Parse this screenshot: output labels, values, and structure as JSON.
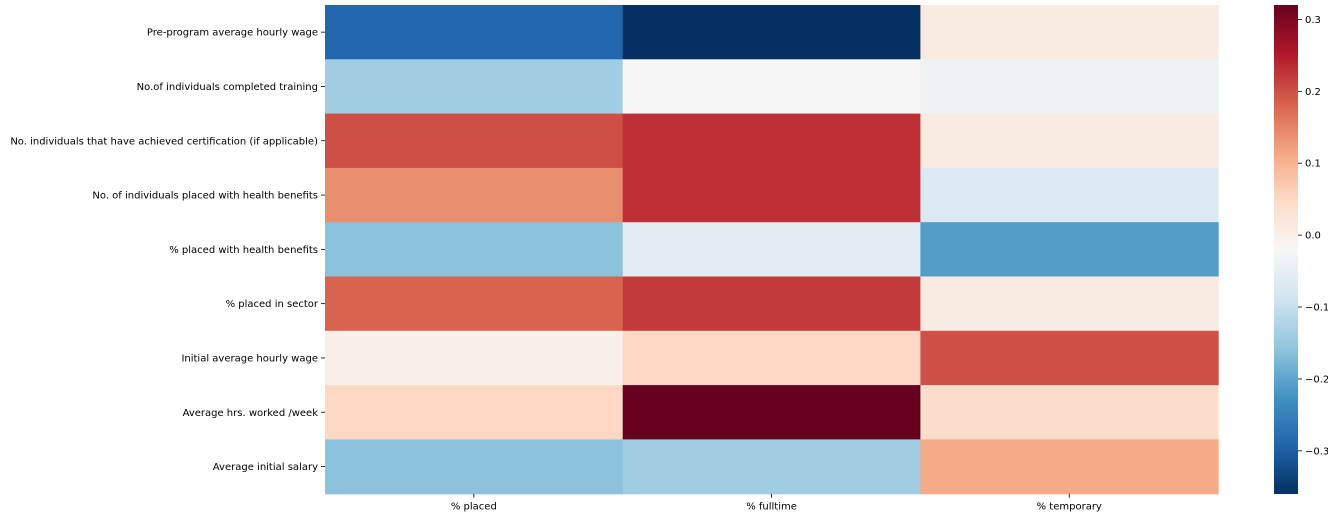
{
  "chart_data": {
    "type": "heatmap",
    "rows": [
      "Pre-program average hourly wage",
      "No.of individuals completed training",
      "No. individuals that have achieved certification (if applicable)",
      "No. of individuals placed with health benefits",
      "% placed with health benefits",
      "% placed in sector",
      "Initial average hourly wage",
      "Average hrs. worked /week",
      "Average initial salary"
    ],
    "columns": [
      "% placed",
      "% fulltime",
      "% temporary"
    ],
    "values": [
      [
        -0.29,
        -0.36,
        0.01
      ],
      [
        -0.14,
        -0.02,
        -0.04
      ],
      [
        0.2,
        0.23,
        0.01
      ],
      [
        0.14,
        0.23,
        -0.07
      ],
      [
        -0.16,
        -0.06,
        -0.21
      ],
      [
        0.18,
        0.22,
        0.01
      ],
      [
        0.0,
        0.05,
        0.2
      ],
      [
        0.05,
        0.32,
        0.04
      ],
      [
        -0.16,
        -0.14,
        0.11
      ]
    ],
    "vmin": -0.36,
    "vmax": 0.32,
    "colormap": "RdBu_r",
    "colorbar_ticks": [
      -0.3,
      -0.2,
      -0.1,
      0.0,
      0.1,
      0.2,
      0.3
    ],
    "colorbar_tick_labels": [
      "−0.3",
      "−0.2",
      "−0.1",
      "0.0",
      "0.1",
      "0.2",
      "0.3"
    ]
  }
}
